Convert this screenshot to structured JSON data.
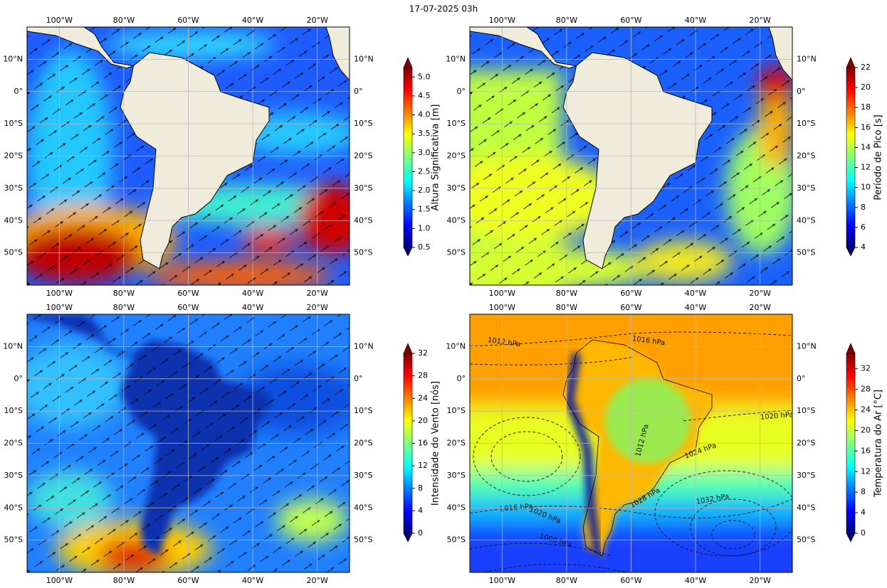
{
  "title": "17-07-2025 03h",
  "extent": {
    "lon": [
      -110,
      -10
    ],
    "lat": [
      -60,
      20
    ]
  },
  "lon_ticks": [
    {
      "value": -100,
      "label": "100°W"
    },
    {
      "value": -80,
      "label": "80°W"
    },
    {
      "value": -60,
      "label": "60°W"
    },
    {
      "value": -40,
      "label": "40°W"
    },
    {
      "value": -20,
      "label": "20°W"
    }
  ],
  "lat_ticks": [
    {
      "value": 10,
      "label": "10°N"
    },
    {
      "value": 0,
      "label": "0°"
    },
    {
      "value": -10,
      "label": "10°S"
    },
    {
      "value": -20,
      "label": "20°S"
    },
    {
      "value": -30,
      "label": "30°S"
    },
    {
      "value": -40,
      "label": "40°S"
    },
    {
      "value": -50,
      "label": "50°S"
    }
  ],
  "panels": [
    {
      "colorbar": {
        "label": "Altura Significativa [m]",
        "lim": [
          0.5,
          5.25
        ],
        "ticks": [
          0.5,
          {
            "value": 1,
            "label": "1.0"
          },
          1.5,
          {
            "value": 2,
            "label": "2.0"
          },
          2.5,
          {
            "value": 3,
            "label": "3.0"
          },
          3.5,
          {
            "value": 4,
            "label": "4.0"
          },
          4.5,
          {
            "value": 5,
            "label": "5.0"
          }
        ]
      }
    },
    {
      "colorbar": {
        "label": "Período de Pico [s]",
        "lim": [
          4,
          22
        ],
        "ticks": [
          4,
          6,
          8,
          10,
          12,
          14,
          16,
          18,
          20,
          22
        ]
      }
    },
    {
      "colorbar": {
        "label": "Intensidade do Vento [nós]",
        "lim": [
          0,
          32
        ],
        "ticks": [
          0,
          4,
          8,
          12,
          16,
          20,
          24,
          28,
          32
        ]
      }
    },
    {
      "colorbar": {
        "label": "Temperatura do Ar [°C]",
        "lim": [
          0,
          35
        ],
        "ticks": [
          0,
          4,
          8,
          12,
          16,
          20,
          24,
          28,
          32
        ]
      },
      "contour_labels": [
        "1012 hPa",
        "1016 hPa",
        "1020 hPa",
        "1024 hPa",
        "1032 hPa",
        "1028 hPa",
        "1016 hPa",
        "1020 hPa",
        "1012 hPa",
        "1000 hPa"
      ]
    }
  ]
}
